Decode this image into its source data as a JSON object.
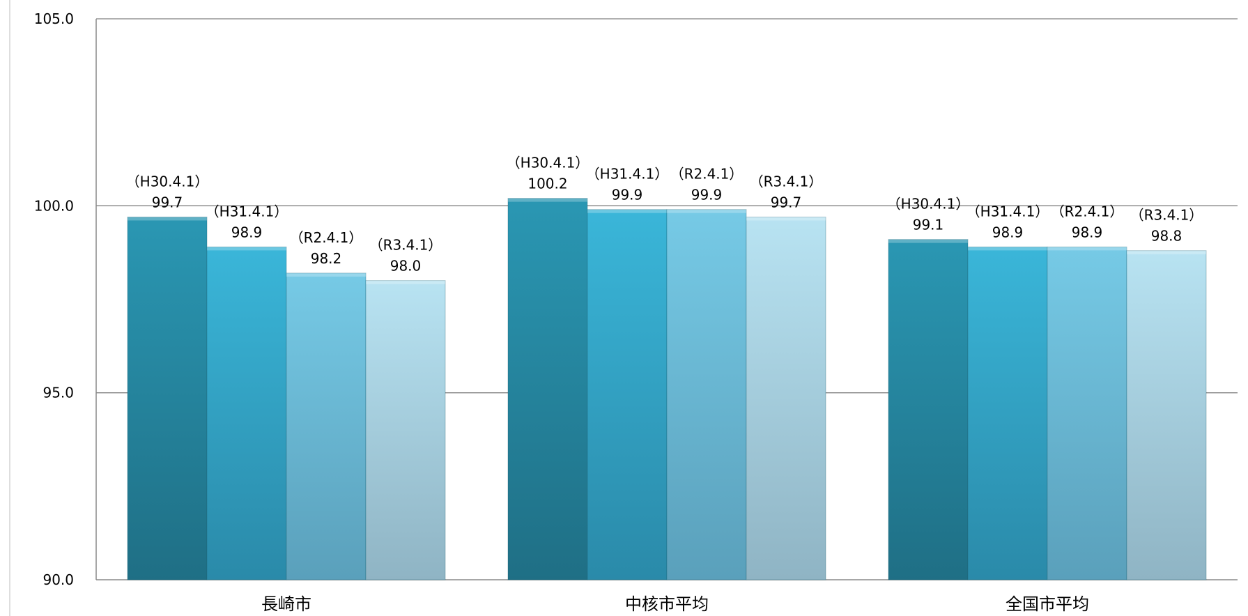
{
  "chart_data": {
    "type": "bar",
    "categories": [
      "長崎市",
      "中核市平均",
      "全国市平均"
    ],
    "series": [
      {
        "values": [
          99.7,
          100.2,
          99.1
        ],
        "point_labels": [
          "（H30.4.1）",
          "（H30.4.1）",
          "（H30.4.1）"
        ],
        "color_top": "#2a97b3",
        "color_bottom": "#1f6f85"
      },
      {
        "values": [
          98.9,
          99.9,
          98.9
        ],
        "point_labels": [
          "（H31.4.1）",
          "（H31.4.1）",
          "（H31.4.1）"
        ],
        "color_top": "#3ab6d9",
        "color_bottom": "#2a8aa9"
      },
      {
        "values": [
          98.2,
          99.9,
          98.9
        ],
        "point_labels": [
          "（R2.4.1）",
          "（R2.4.1）",
          "（R2.4.1）"
        ],
        "color_top": "#76cae6",
        "color_bottom": "#5aa0bb"
      },
      {
        "values": [
          98.0,
          99.7,
          98.8
        ],
        "point_labels": [
          "（R3.4.1）",
          "（R3.4.1）",
          "（R3.4.1）"
        ],
        "color_top": "#b8e3f2",
        "color_bottom": "#8fb4c4"
      }
    ],
    "ylim": [
      90,
      105
    ],
    "yticks": [
      "90.0",
      "95.0",
      "100.0",
      "105.0"
    ],
    "grid": true,
    "gridline_color": "#808080",
    "axis_color": "#8a8a8a",
    "title": "",
    "xlabel": "",
    "ylabel": ""
  }
}
